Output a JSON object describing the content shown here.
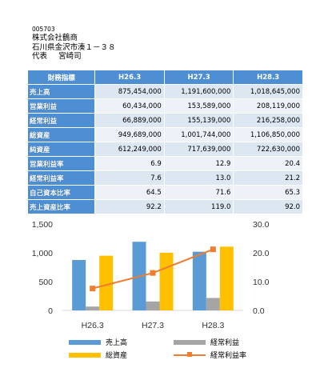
{
  "header": {
    "code": "005703",
    "company": "株式会社鶴商",
    "address": "石川県金沢市湊１－３８",
    "rep_label": "代表",
    "rep_name": "宮崎司"
  },
  "table": {
    "corner": "財務指標",
    "years": [
      "H26.3",
      "H27.3",
      "H28.3"
    ],
    "rows": [
      {
        "label": "売上高",
        "values": [
          "875,454,000",
          "1,191,600,000",
          "1,018,645,000"
        ]
      },
      {
        "label": "営業利益",
        "values": [
          "60,434,000",
          "153,589,000",
          "208,119,000"
        ]
      },
      {
        "label": "経常利益",
        "values": [
          "66,889,000",
          "155,139,000",
          "216,258,000"
        ]
      },
      {
        "label": "総資産",
        "values": [
          "949,689,000",
          "1,001,744,000",
          "1,106,850,000"
        ]
      },
      {
        "label": "純資産",
        "values": [
          "612,249,000",
          "717,639,000",
          "722,630,000"
        ]
      },
      {
        "label": "営業利益率",
        "values": [
          "6.9",
          "12.9",
          "20.4"
        ]
      },
      {
        "label": "経常利益率",
        "values": [
          "7.6",
          "13.0",
          "21.2"
        ]
      },
      {
        "label": "自己資本比率",
        "values": [
          "64.5",
          "71.6",
          "65.3"
        ]
      },
      {
        "label": "売上資産比率",
        "values": [
          "92.2",
          "119.0",
          "92.0"
        ]
      }
    ]
  },
  "chart_data": {
    "type": "bar",
    "categories": [
      "H26.3",
      "H27.3",
      "H28.3"
    ],
    "series": [
      {
        "name": "売上高",
        "kind": "bar",
        "axis": "left",
        "color": "#5b9bd5",
        "values": [
          875.454,
          1191.6,
          1018.645
        ]
      },
      {
        "name": "経常利益",
        "kind": "bar",
        "axis": "left",
        "color": "#a5a5a5",
        "values": [
          66.889,
          155.139,
          216.258
        ]
      },
      {
        "name": "総資産",
        "kind": "bar",
        "axis": "left",
        "color": "#ffc000",
        "values": [
          949.689,
          1001.744,
          1106.85
        ]
      },
      {
        "name": "経常利益率",
        "kind": "line",
        "axis": "right",
        "color": "#ed7d31",
        "values": [
          7.6,
          13.0,
          21.2
        ]
      }
    ],
    "y_left": {
      "min": 0,
      "max": 1500,
      "ticks": [
        "0",
        "500",
        "1,000",
        "1,500"
      ],
      "tick_values": [
        0,
        500,
        1000,
        1500
      ]
    },
    "y_right": {
      "min": 0,
      "max": 30,
      "ticks": [
        "0.0",
        "10.0",
        "20.0",
        "30.0"
      ],
      "tick_values": [
        0,
        10,
        20,
        30
      ]
    },
    "grid": false,
    "legend": "bottom"
  }
}
